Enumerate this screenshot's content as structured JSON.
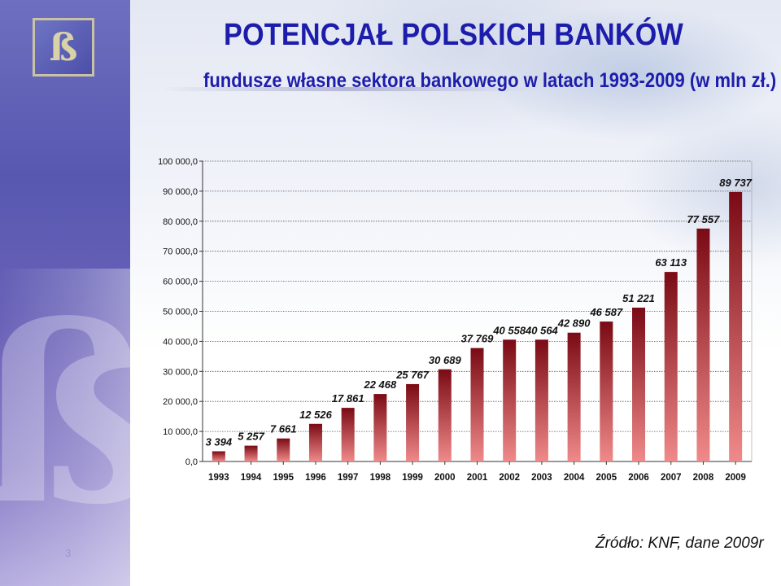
{
  "title": "POTENCJAŁ POLSKICH BANKÓW",
  "subtitle": "fundusze własne sektora bankowego w latach 1993-2009 (w mln zł.)",
  "source": "Źródło: KNF, dane 2009r",
  "page_number": "3",
  "logo_icon": "bank-logo-icon",
  "colors": {
    "title": "#1d1dab",
    "bar_top": "#7a0a14",
    "bar_bottom": "#f08a8a",
    "sidebar": "#5758b0"
  },
  "chart_data": {
    "type": "bar",
    "title": "",
    "xlabel": "",
    "ylabel": "",
    "ylim": [
      0,
      100000
    ],
    "yticks": [
      "0,0",
      "10 000,0",
      "20 000,0",
      "30 000,0",
      "40 000,0",
      "50 000,0",
      "60 000,0",
      "70 000,0",
      "80 000,0",
      "90 000,0",
      "100 000,0"
    ],
    "grid": true,
    "categories": [
      "1993",
      "1994",
      "1995",
      "1996",
      "1997",
      "1998",
      "1999",
      "2000",
      "2001",
      "2002",
      "2003",
      "2004",
      "2005",
      "2006",
      "2007",
      "2008",
      "2009"
    ],
    "values": [
      3394,
      5257,
      7661,
      12526,
      17861,
      22468,
      25767,
      30689,
      37769,
      40558,
      40564,
      42890,
      46587,
      51221,
      63113,
      77557,
      89737
    ],
    "data_labels": [
      "3 394",
      "5 257",
      "7 661",
      "12 526",
      "17 861",
      "22 468",
      "25 767",
      "30 689",
      "37 769",
      "40 558",
      "40 564",
      "42 890",
      "46 587",
      "51 221",
      "63 113",
      "77 557",
      "89 737"
    ]
  }
}
